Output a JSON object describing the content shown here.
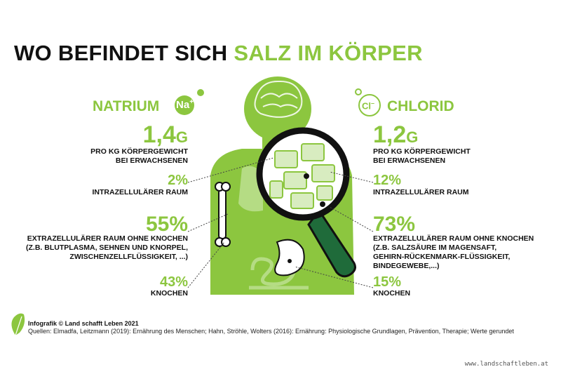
{
  "title": {
    "part1": "WO BEFINDET SICH ",
    "part2": "SALZ IM KÖRPER"
  },
  "natrium": {
    "label": "NATRIUM",
    "symbol": "Na",
    "symbol_sup": "+",
    "total_value": "1,4",
    "total_unit": "G",
    "total_caption_1": "PRO KG KÖRPERGEWICHT",
    "total_caption_2": "BEI ERWACHSENEN",
    "intra_pct": "2%",
    "intra_label": "INTRAZELLULÄRER RAUM",
    "extra_pct": "55%",
    "extra_label_1": "EXTRAZELLULÄRER RAUM OHNE KNOCHEN",
    "extra_label_2": "(Z.B. BLUTPLASMA, SEHNEN UND KNORPEL,",
    "extra_label_3": "ZWISCHENZELLFLÜSSIGKEIT, ...)",
    "bone_pct": "43%",
    "bone_label": "KNOCHEN"
  },
  "chlorid": {
    "label": "CHLORID",
    "symbol": "Cl",
    "symbol_sup": "–",
    "total_value": "1,2",
    "total_unit": "G",
    "total_caption_1": "PRO KG KÖRPERGEWICHT",
    "total_caption_2": "BEI ERWACHSENEN",
    "intra_pct": "12%",
    "intra_label": "INTRAZELLULÄRER RAUM",
    "extra_pct": "73%",
    "extra_label_1": "EXTRAZELLULÄRER RAUM OHNE KNOCHEN",
    "extra_label_2": "(Z.B. SALZSÄURE IM MAGENSAFT,",
    "extra_label_3": "GEHIRN-RÜCKENMARK-FLÜSSIGKEIT,",
    "extra_label_4": "BINDEGEWEBE,...)",
    "bone_pct": "15%",
    "bone_label": "KNOCHEN"
  },
  "footer": {
    "credit": "Infografik © Land schafft Leben 2021",
    "sources": "Quellen: Elmadfa, Leitzmann (2019): Ernährung des Menschen; Hahn, Ströhle, Wolters (2016): Ernährung: Physiologische Grundlagen, Prävention, Therapie; Werte gerundet"
  },
  "url": "www.landschaftleben.at",
  "colors": {
    "accent": "#8cc63f",
    "dark": "#111111",
    "magnifier_handle": "#1f6b3a"
  }
}
